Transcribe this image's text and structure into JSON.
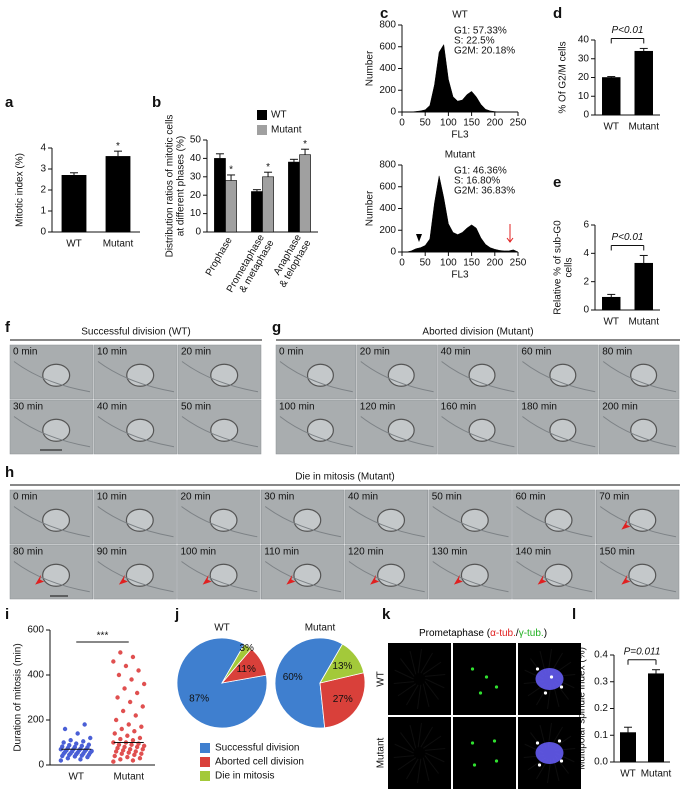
{
  "chart_data": [
    {
      "panel": "a",
      "type": "bar",
      "categories": [
        "WT",
        "Mutant"
      ],
      "values": [
        2.7,
        3.6
      ],
      "errors": [
        0.12,
        0.25
      ],
      "annotations": [
        null,
        "*"
      ],
      "color": "#000000",
      "ylabel": "Mitotic index (%)",
      "ylim": [
        0,
        4
      ],
      "yticks": [
        0,
        1,
        2,
        3,
        4
      ]
    },
    {
      "panel": "b",
      "type": "bar",
      "categories": [
        [
          "Prophase"
        ],
        [
          "Prometaphase",
          "& metaphase"
        ],
        [
          "Anaphase",
          "& telophase"
        ]
      ],
      "series": [
        {
          "name": "WT",
          "color": "#000000",
          "values": [
            40,
            22,
            38
          ],
          "errors": [
            2.5,
            1,
            1.5
          ]
        },
        {
          "name": "Mutant",
          "color": "#a0a0a0",
          "values": [
            28,
            30,
            42
          ],
          "errors": [
            3,
            2.5,
            3
          ],
          "annotations": [
            "*",
            "*",
            "*"
          ]
        }
      ],
      "ylabel": [
        "Distribution ratios of mitotic cells",
        "at different phases (%)"
      ],
      "ylim": [
        0,
        50
      ],
      "yticks": [
        0,
        10,
        20,
        30,
        40,
        50
      ]
    },
    {
      "panel": "c",
      "type": "area",
      "title": "WT",
      "annotation": [
        "G1: 57.33%",
        "S: 22.5%",
        "G2M: 20.18%"
      ],
      "xlabel": "FL3",
      "ylabel": "Number",
      "color": "#000000",
      "x": [
        0,
        10,
        20,
        30,
        40,
        50,
        60,
        70,
        80,
        90,
        100,
        110,
        120,
        130,
        140,
        150,
        160,
        170,
        180,
        190,
        200,
        210,
        220,
        230,
        240,
        250
      ],
      "values": [
        0,
        0,
        0,
        5,
        10,
        20,
        60,
        250,
        550,
        620,
        300,
        140,
        100,
        110,
        160,
        190,
        140,
        70,
        25,
        10,
        4,
        0,
        0,
        0,
        0,
        0
      ],
      "xlim": [
        0,
        250
      ],
      "xticks": [
        0,
        50,
        100,
        150,
        200,
        250
      ],
      "ylim": [
        0,
        800
      ],
      "yticks": [
        0,
        200,
        400,
        600,
        800
      ]
    },
    {
      "type": "area",
      "title": "Mutant",
      "annotation": [
        "G1: 46.36%",
        "S: 16.80%",
        "G2M: 36.83%"
      ],
      "xlabel": "FL3",
      "ylabel": "Number",
      "color": "#000000",
      "x": [
        0,
        10,
        20,
        30,
        40,
        50,
        60,
        70,
        80,
        90,
        100,
        110,
        120,
        130,
        140,
        150,
        160,
        170,
        180,
        190,
        200,
        210,
        220,
        230,
        240,
        250
      ],
      "values": [
        0,
        0,
        10,
        30,
        40,
        60,
        120,
        450,
        700,
        500,
        260,
        180,
        160,
        180,
        220,
        250,
        220,
        130,
        70,
        40,
        25,
        15,
        10,
        10,
        20,
        0
      ],
      "xlim": [
        0,
        250
      ],
      "xticks": [
        0,
        50,
        100,
        150,
        200,
        250
      ],
      "ylim": [
        0,
        800
      ],
      "yticks": [
        0,
        200,
        400,
        600,
        800
      ]
    },
    {
      "panel": "d",
      "type": "bar",
      "categories": [
        "WT",
        "Mutant"
      ],
      "values": [
        20,
        34
      ],
      "errors": [
        0.5,
        1.5
      ],
      "significance": "P<0.01",
      "color": "#000000",
      "ylabel": "% Of G2/M cells",
      "ylim": [
        0,
        40
      ],
      "yticks": [
        0,
        10,
        20,
        30,
        40
      ]
    },
    {
      "panel": "e",
      "type": "bar",
      "categories": [
        "WT",
        "Mutant"
      ],
      "values": [
        0.9,
        3.3
      ],
      "errors": [
        0.2,
        0.55
      ],
      "significance": "P<0.01",
      "color": "#000000",
      "ylabel": [
        "Relative % of sub-G0",
        "cells"
      ],
      "ylim": [
        0,
        6
      ],
      "yticks": [
        0,
        2,
        4,
        6
      ]
    },
    {
      "panel": "i",
      "type": "strip",
      "categories": [
        "WT",
        "Mutant"
      ],
      "colors": [
        "#4a5fd6",
        "#e05050"
      ],
      "means": [
        70,
        100
      ],
      "significance": "***",
      "ylabel": "Duration of mitosis (min)",
      "ylim": [
        0,
        600
      ],
      "yticks": [
        0,
        200,
        400,
        600
      ],
      "values": [
        [
          20,
          25,
          30,
          35,
          38,
          40,
          42,
          45,
          45,
          48,
          50,
          50,
          52,
          55,
          55,
          58,
          60,
          60,
          62,
          65,
          65,
          68,
          70,
          70,
          72,
          75,
          78,
          80,
          82,
          85,
          88,
          90,
          95,
          100,
          105,
          110,
          120,
          140,
          160,
          180
        ],
        [
          15,
          20,
          25,
          30,
          35,
          40,
          45,
          50,
          50,
          55,
          60,
          60,
          65,
          70,
          70,
          75,
          80,
          80,
          85,
          90,
          90,
          95,
          100,
          100,
          110,
          115,
          120,
          130,
          140,
          150,
          160,
          170,
          180,
          200,
          220,
          240,
          260,
          280,
          300,
          320,
          340,
          360,
          380,
          400,
          420,
          440,
          460,
          480,
          500
        ]
      ]
    },
    {
      "panel": "j",
      "type": "pie",
      "categories": [
        "Successful division",
        "Aborted cell division",
        "Die in mitosis"
      ],
      "colors": [
        "#3f7fcf",
        "#d9403a",
        "#a3c93a"
      ],
      "series": [
        {
          "name": "WT",
          "values": [
            87,
            11,
            3
          ],
          "value_labels": [
            "87%",
            "11%",
            "3%"
          ]
        },
        {
          "name": "Mutant",
          "values": [
            60,
            27,
            13
          ],
          "value_labels": [
            "60%",
            "27%",
            "13%"
          ]
        }
      ]
    },
    {
      "panel": "l",
      "type": "bar",
      "categories": [
        "WT",
        "Mutant"
      ],
      "values": [
        0.11,
        0.33
      ],
      "errors": [
        0.02,
        0.015
      ],
      "significance": "P=0.011",
      "color": "#000000",
      "ylabel": "Multipolar spindle index (%)",
      "ylim": [
        0,
        0.4
      ],
      "yticks": [
        {
          "value": 0,
          "label": "0.0"
        },
        0.1,
        0.2,
        0.3,
        0.4
      ]
    }
  ],
  "image_panels": {
    "f": {
      "panel": "f",
      "title": "Successful division (WT)",
      "frames": [
        "0 min",
        "10 min",
        "20 min",
        "30 min",
        "40 min",
        "50 min"
      ]
    },
    "g": {
      "panel": "g",
      "title": "Aborted division (Mutant)",
      "frames": [
        "0 min",
        "20 min",
        "40 min",
        "60 min",
        "80 min",
        "100 min",
        "120 min",
        "160 min",
        "180 min",
        "200 min"
      ]
    },
    "h": {
      "panel": "h",
      "title": "Die in mitosis (Mutant)",
      "frames": [
        "0 min",
        "10 min",
        "20 min",
        "30 min",
        "40 min",
        "50 min",
        "60 min",
        "70 min",
        "80 min",
        "90 min",
        "100 min",
        "110 min",
        "120 min",
        "130 min",
        "140 min",
        "150 min"
      ]
    },
    "k": {
      "panel": "k",
      "title": [
        {
          "text": "Prometaphase (",
          "color": "#000000"
        },
        {
          "text": "α-tub.",
          "color": "#e02020"
        },
        {
          "text": "/",
          "color": "#000000"
        },
        {
          "text": "γ-tub.",
          "color": "#20b020"
        },
        {
          "text": ")",
          "color": "#000000"
        }
      ],
      "rows": [
        "WT",
        "Mutant"
      ]
    }
  }
}
